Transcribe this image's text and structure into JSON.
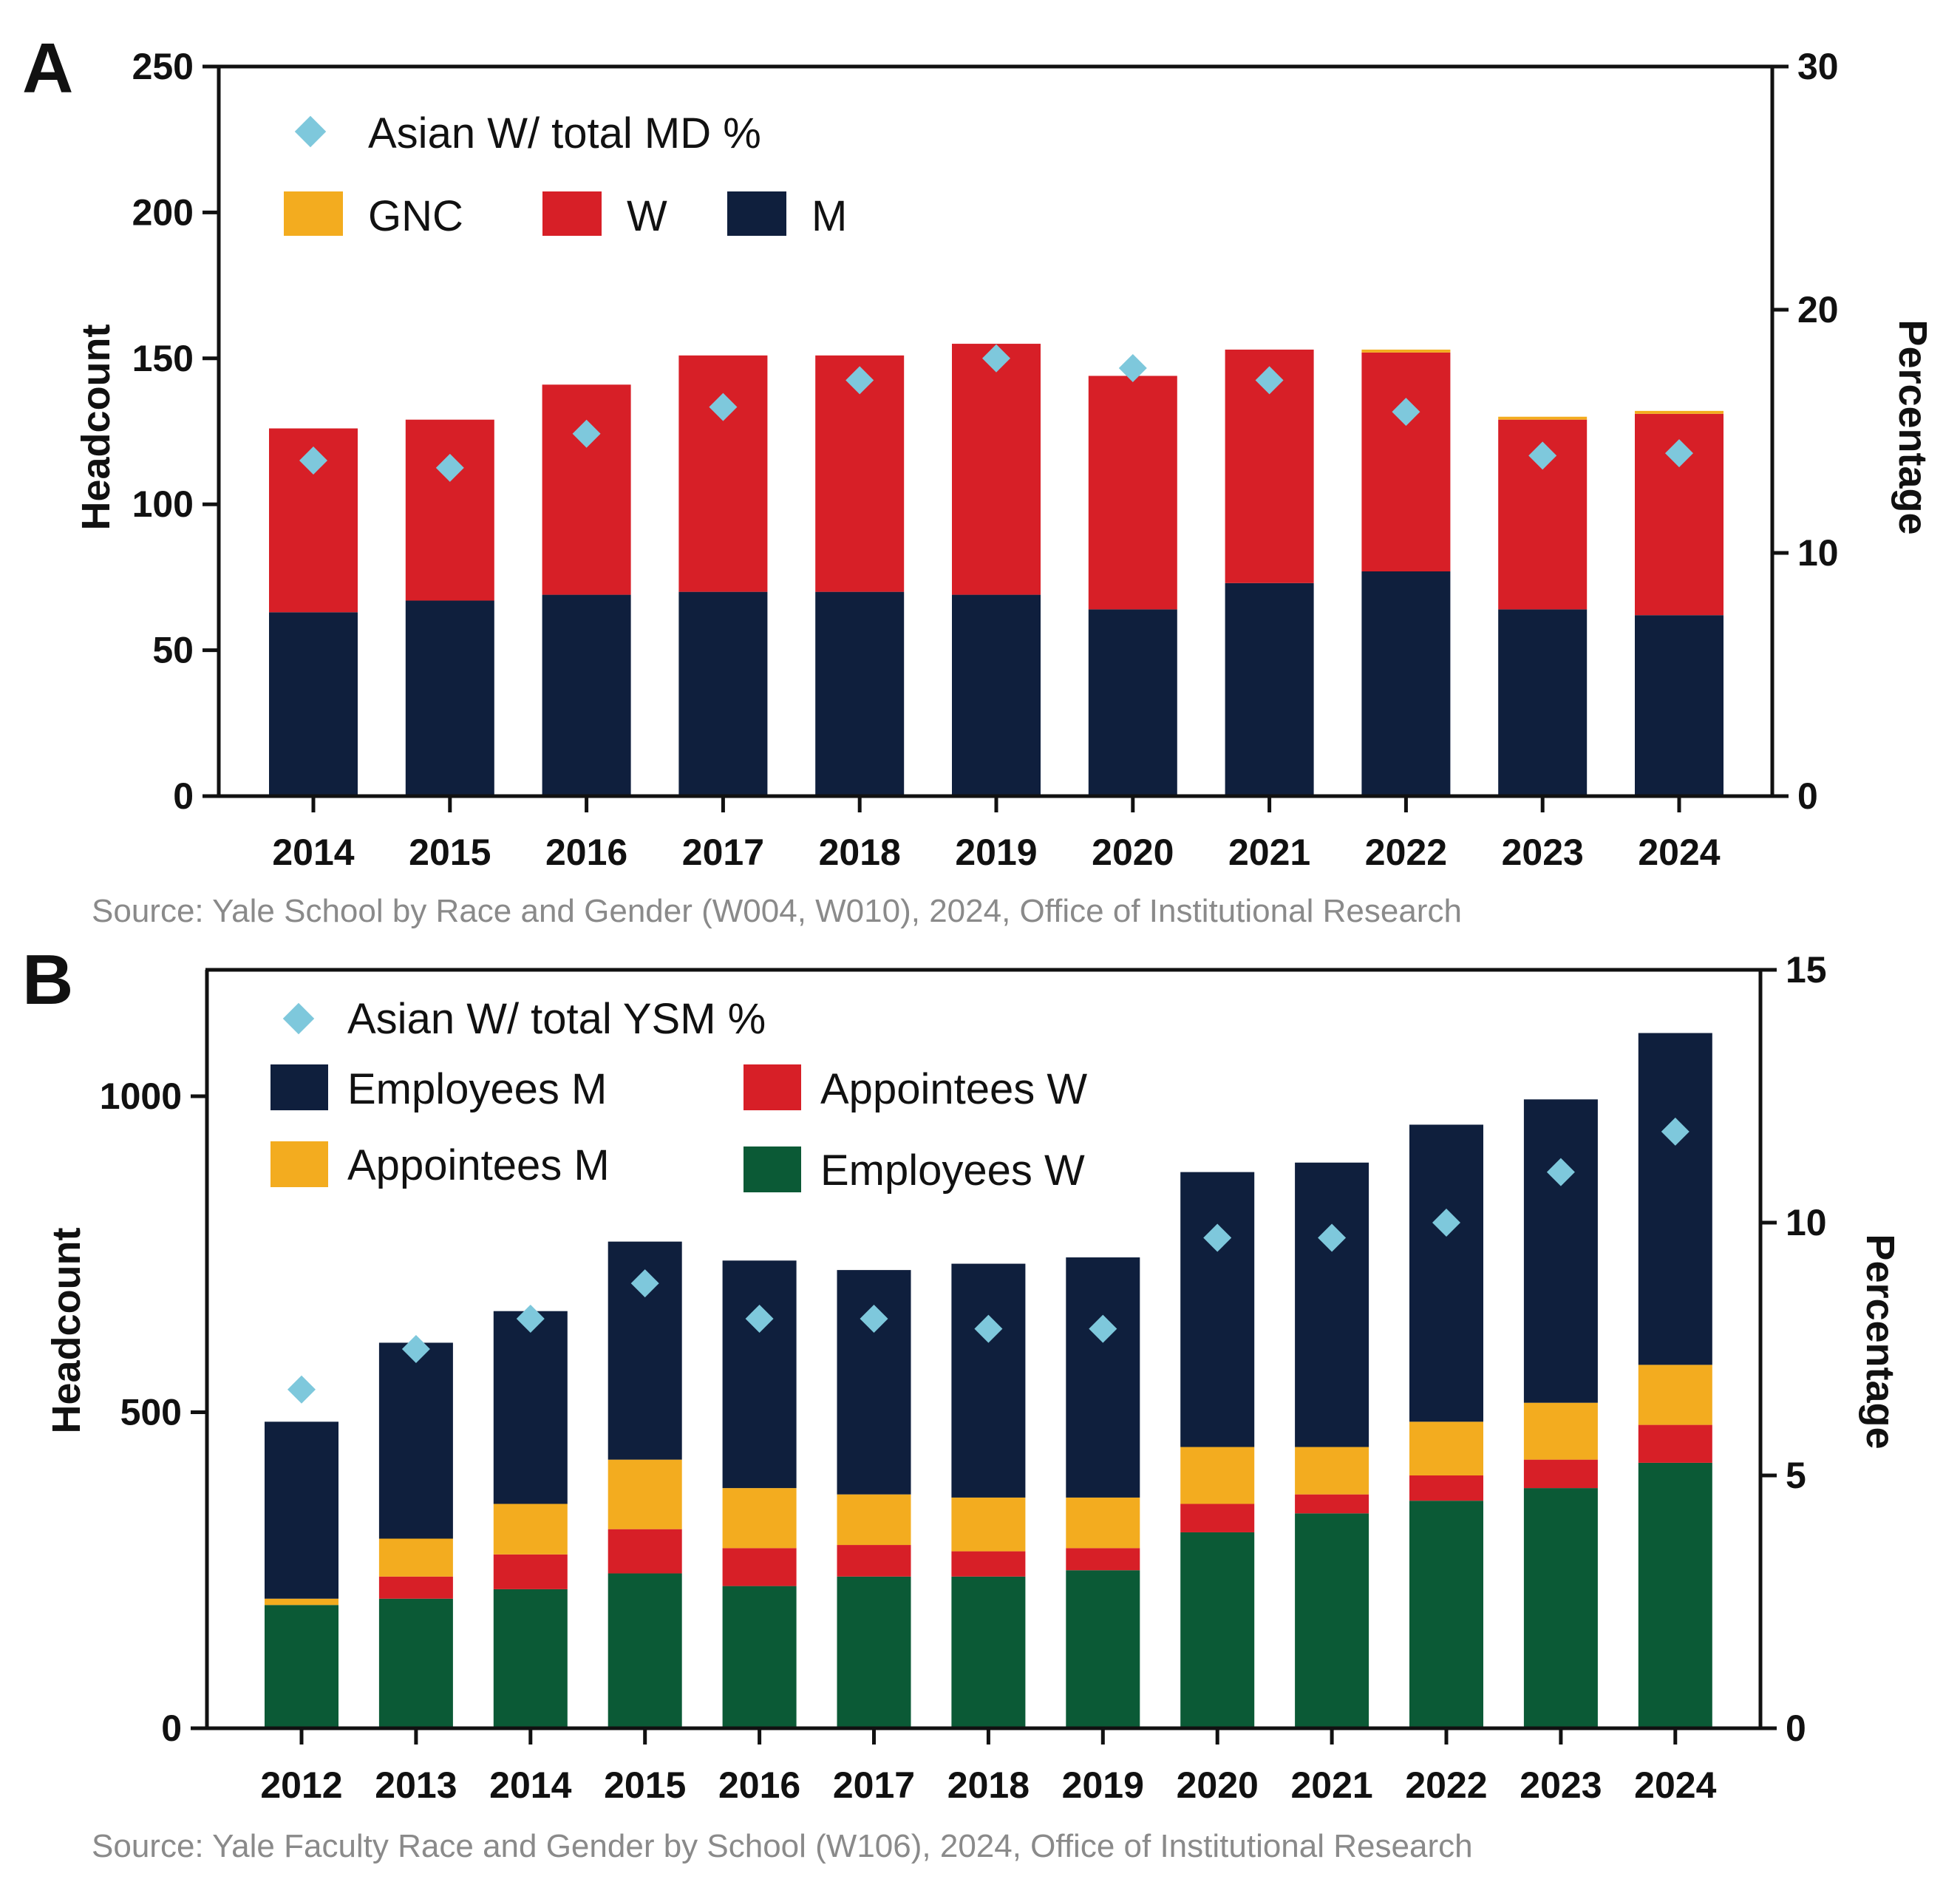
{
  "colors": {
    "M": "#0f1f3d",
    "W": "#d71f27",
    "GNC": "#f3ac1f",
    "Employees M": "#0f1f3d",
    "Appointees W": "#d71f27",
    "Appointees M": "#f3ac1f",
    "Employees W": "#0b5a36",
    "marker": "#7ec8dc",
    "axis": "#111111",
    "source_text": "#8a8a8a"
  },
  "chart_data": [
    {
      "panel": "A",
      "type": "bar",
      "stacked": true,
      "categories": [
        "2014",
        "2015",
        "2016",
        "2017",
        "2018",
        "2019",
        "2020",
        "2021",
        "2022",
        "2023",
        "2024"
      ],
      "series": [
        {
          "name": "M",
          "values": [
            63,
            67,
            69,
            70,
            70,
            69,
            64,
            73,
            77,
            64,
            62
          ]
        },
        {
          "name": "W",
          "values": [
            63,
            62,
            72,
            81,
            81,
            86,
            80,
            80,
            75,
            65,
            69
          ]
        },
        {
          "name": "GNC",
          "values": [
            0,
            0,
            0,
            0,
            0,
            0,
            0,
            0,
            1,
            1,
            1
          ]
        }
      ],
      "scatter": {
        "name": "Asian W/ total MD %",
        "axis": "right",
        "values": [
          13.8,
          13.5,
          14.9,
          16.0,
          17.1,
          18.0,
          17.6,
          17.1,
          15.8,
          14.0,
          14.1
        ]
      },
      "legend": {
        "marker_label": "Asian W/ total MD %",
        "items": [
          "GNC",
          "W",
          "M"
        ]
      },
      "ylabel": "Headcount",
      "y2label": "Percentage",
      "ylim": [
        0,
        250
      ],
      "yticks": [
        "0",
        "50",
        "100",
        "150",
        "200",
        "250"
      ],
      "y2lim": [
        0,
        30
      ],
      "y2ticks": [
        "0",
        "10",
        "20",
        "30"
      ],
      "source": "Source: Yale School by Race and Gender (W004, W010), 2024, Office of Institutional Research"
    },
    {
      "panel": "B",
      "type": "bar",
      "stacked": true,
      "categories": [
        "2012",
        "2013",
        "2014",
        "2015",
        "2016",
        "2017",
        "2018",
        "2019",
        "2020",
        "2021",
        "2022",
        "2023",
        "2024"
      ],
      "series": [
        {
          "name": "Employees W",
          "values": [
            195,
            205,
            220,
            245,
            225,
            240,
            240,
            250,
            310,
            340,
            360,
            380,
            420
          ]
        },
        {
          "name": "Appointees W",
          "values": [
            0,
            35,
            55,
            70,
            60,
            50,
            40,
            35,
            45,
            30,
            40,
            45,
            60
          ]
        },
        {
          "name": "Appointees M",
          "values": [
            10,
            60,
            80,
            110,
            95,
            80,
            85,
            80,
            90,
            75,
            85,
            90,
            95
          ]
        },
        {
          "name": "Employees M",
          "values": [
            280,
            310,
            305,
            345,
            360,
            355,
            370,
            380,
            435,
            450,
            470,
            480,
            525
          ]
        }
      ],
      "scatter": {
        "name": "Asian W/ total YSM %",
        "axis": "right",
        "values": [
          6.7,
          7.5,
          8.1,
          8.8,
          8.1,
          8.1,
          7.9,
          7.9,
          9.7,
          9.7,
          10.0,
          11.0,
          11.8
        ]
      },
      "legend": {
        "marker_label": "Asian W/ total YSM %",
        "items": [
          "Employees M",
          "Appointees W",
          "Appointees M",
          "Employees W"
        ]
      },
      "ylabel": "Headcount",
      "y2label": "Percentage",
      "ylim": [
        0,
        1200
      ],
      "yticks": [
        "0",
        "500",
        "1000"
      ],
      "y2lim": [
        0,
        15
      ],
      "y2ticks": [
        "0",
        "5",
        "10",
        "15"
      ],
      "source": "Source: Yale Faculty Race and Gender by School (W106), 2024, Office of Institutional Research"
    }
  ]
}
